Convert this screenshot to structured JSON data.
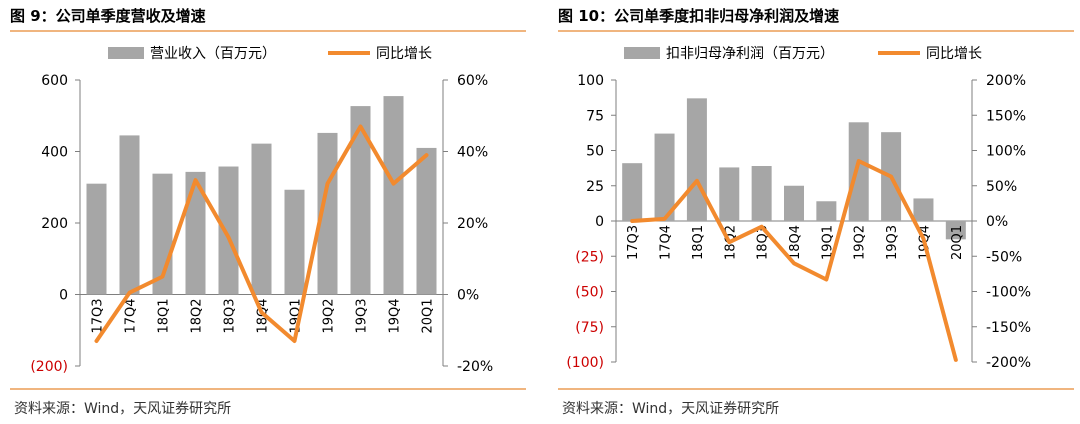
{
  "charts": [
    {
      "title": "图 9：公司单季度营收及增速",
      "source": "资料来源：Wind，天风证券研究所",
      "legend": {
        "bar": "营业收入（百万元）",
        "line": "同比增长"
      },
      "colors": {
        "bar": "#a6a6a6",
        "line": "#f28a2e",
        "negative_label": "#cc0000",
        "rule": "#f0b57f"
      },
      "chart_data": {
        "type": "bar",
        "categories": [
          "17Q3",
          "17Q4",
          "18Q1",
          "18Q2",
          "18Q3",
          "18Q4",
          "19Q1",
          "19Q2",
          "19Q3",
          "19Q4",
          "20Q1"
        ],
        "series": [
          {
            "name": "营业收入（百万元）",
            "type": "bar",
            "axis": "left",
            "values": [
              310,
              445,
              338,
              343,
              358,
              422,
              293,
              452,
              527,
              555,
              410
            ]
          },
          {
            "name": "同比增长",
            "type": "line",
            "axis": "right",
            "values": [
              -13,
              0.5,
              5,
              32,
              16,
              -5,
              -13,
              31,
              47,
              31,
              39
            ]
          }
        ],
        "y_left": {
          "range": [
            -200,
            600
          ],
          "ticks": [
            -200,
            0,
            200,
            400,
            600
          ],
          "tick_labels": [
            "(200)",
            "0",
            "200",
            "400",
            "600"
          ]
        },
        "y_right": {
          "range": [
            -20,
            60
          ],
          "ticks": [
            -20,
            0,
            20,
            40,
            60
          ],
          "tick_labels": [
            "-20%",
            "0%",
            "20%",
            "40%",
            "60%"
          ]
        },
        "legend_position": "top",
        "grid": false
      }
    },
    {
      "title": "图 10：公司单季度扣非归母净利润及增速",
      "source": "资料来源：Wind，天风证券研究所",
      "legend": {
        "bar": "扣非归母净利润（百万元）",
        "line": "同比增长"
      },
      "colors": {
        "bar": "#a6a6a6",
        "line": "#f28a2e",
        "negative_label": "#cc0000",
        "rule": "#f0b57f"
      },
      "chart_data": {
        "type": "bar",
        "categories": [
          "17Q3",
          "17Q4",
          "18Q1",
          "18Q2",
          "18Q3",
          "18Q4",
          "19Q1",
          "19Q2",
          "19Q3",
          "19Q4",
          "20Q1"
        ],
        "series": [
          {
            "name": "扣非归母净利润（百万元）",
            "type": "bar",
            "axis": "left",
            "values": [
              41,
              62,
              87,
              38,
              39,
              25,
              14,
              70,
              63,
              16,
              -13
            ]
          },
          {
            "name": "同比增长",
            "type": "line",
            "axis": "right",
            "values": [
              0,
              3,
              57,
              -30,
              -8,
              -60,
              -83,
              85,
              63,
              -25,
              -197
            ]
          }
        ],
        "y_left": {
          "range": [
            -100,
            100
          ],
          "ticks": [
            -100,
            -75,
            -50,
            -25,
            0,
            25,
            50,
            75,
            100
          ],
          "tick_labels": [
            "(100)",
            "(75)",
            "(50)",
            "(25)",
            "0",
            "25",
            "50",
            "75",
            "100"
          ]
        },
        "y_right": {
          "range": [
            -200,
            200
          ],
          "ticks": [
            -200,
            -150,
            -100,
            -50,
            0,
            50,
            100,
            150,
            200
          ],
          "tick_labels": [
            "-200%",
            "-150%",
            "-100%",
            "-50%",
            "0%",
            "50%",
            "100%",
            "150%",
            "200%"
          ]
        },
        "legend_position": "top",
        "grid": false
      }
    }
  ]
}
